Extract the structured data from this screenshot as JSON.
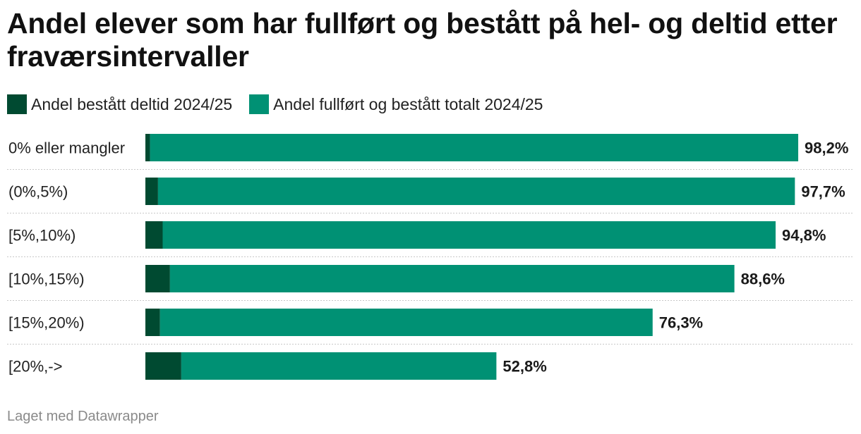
{
  "header": {
    "title": "Andel elever som har fullført og bestått på hel- og deltid etter fraværsintervaller"
  },
  "legend": [
    {
      "label": "Andel bestått deltid 2024/25",
      "color": "#004a31"
    },
    {
      "label": "Andel fullført og bestått totalt 2024/25",
      "color": "#009174"
    }
  ],
  "chart_data": {
    "type": "bar",
    "orientation": "horizontal",
    "stacked": true,
    "categories": [
      "0% eller mangler",
      "(0%,5%)",
      "[5%,10%)",
      "[10%,15%)",
      "[15%,20%)",
      "[20%,->"
    ],
    "series": [
      {
        "name": "Andel bestått deltid 2024/25",
        "color": "#004a31",
        "values": [
          0.7,
          1.9,
          2.6,
          3.7,
          2.2,
          5.4
        ]
      },
      {
        "name": "Andel fullført og bestått totalt 2024/25",
        "color": "#009174",
        "values": [
          97.5,
          95.8,
          92.2,
          84.9,
          74.1,
          47.4
        ]
      }
    ],
    "data_labels": [
      "98,2%",
      "97,7%",
      "94,8%",
      "88,6%",
      "76,3%",
      "52,8%"
    ],
    "xlim": [
      0,
      100
    ],
    "grid": false
  },
  "footer": {
    "credit": "Laget med Datawrapper"
  }
}
